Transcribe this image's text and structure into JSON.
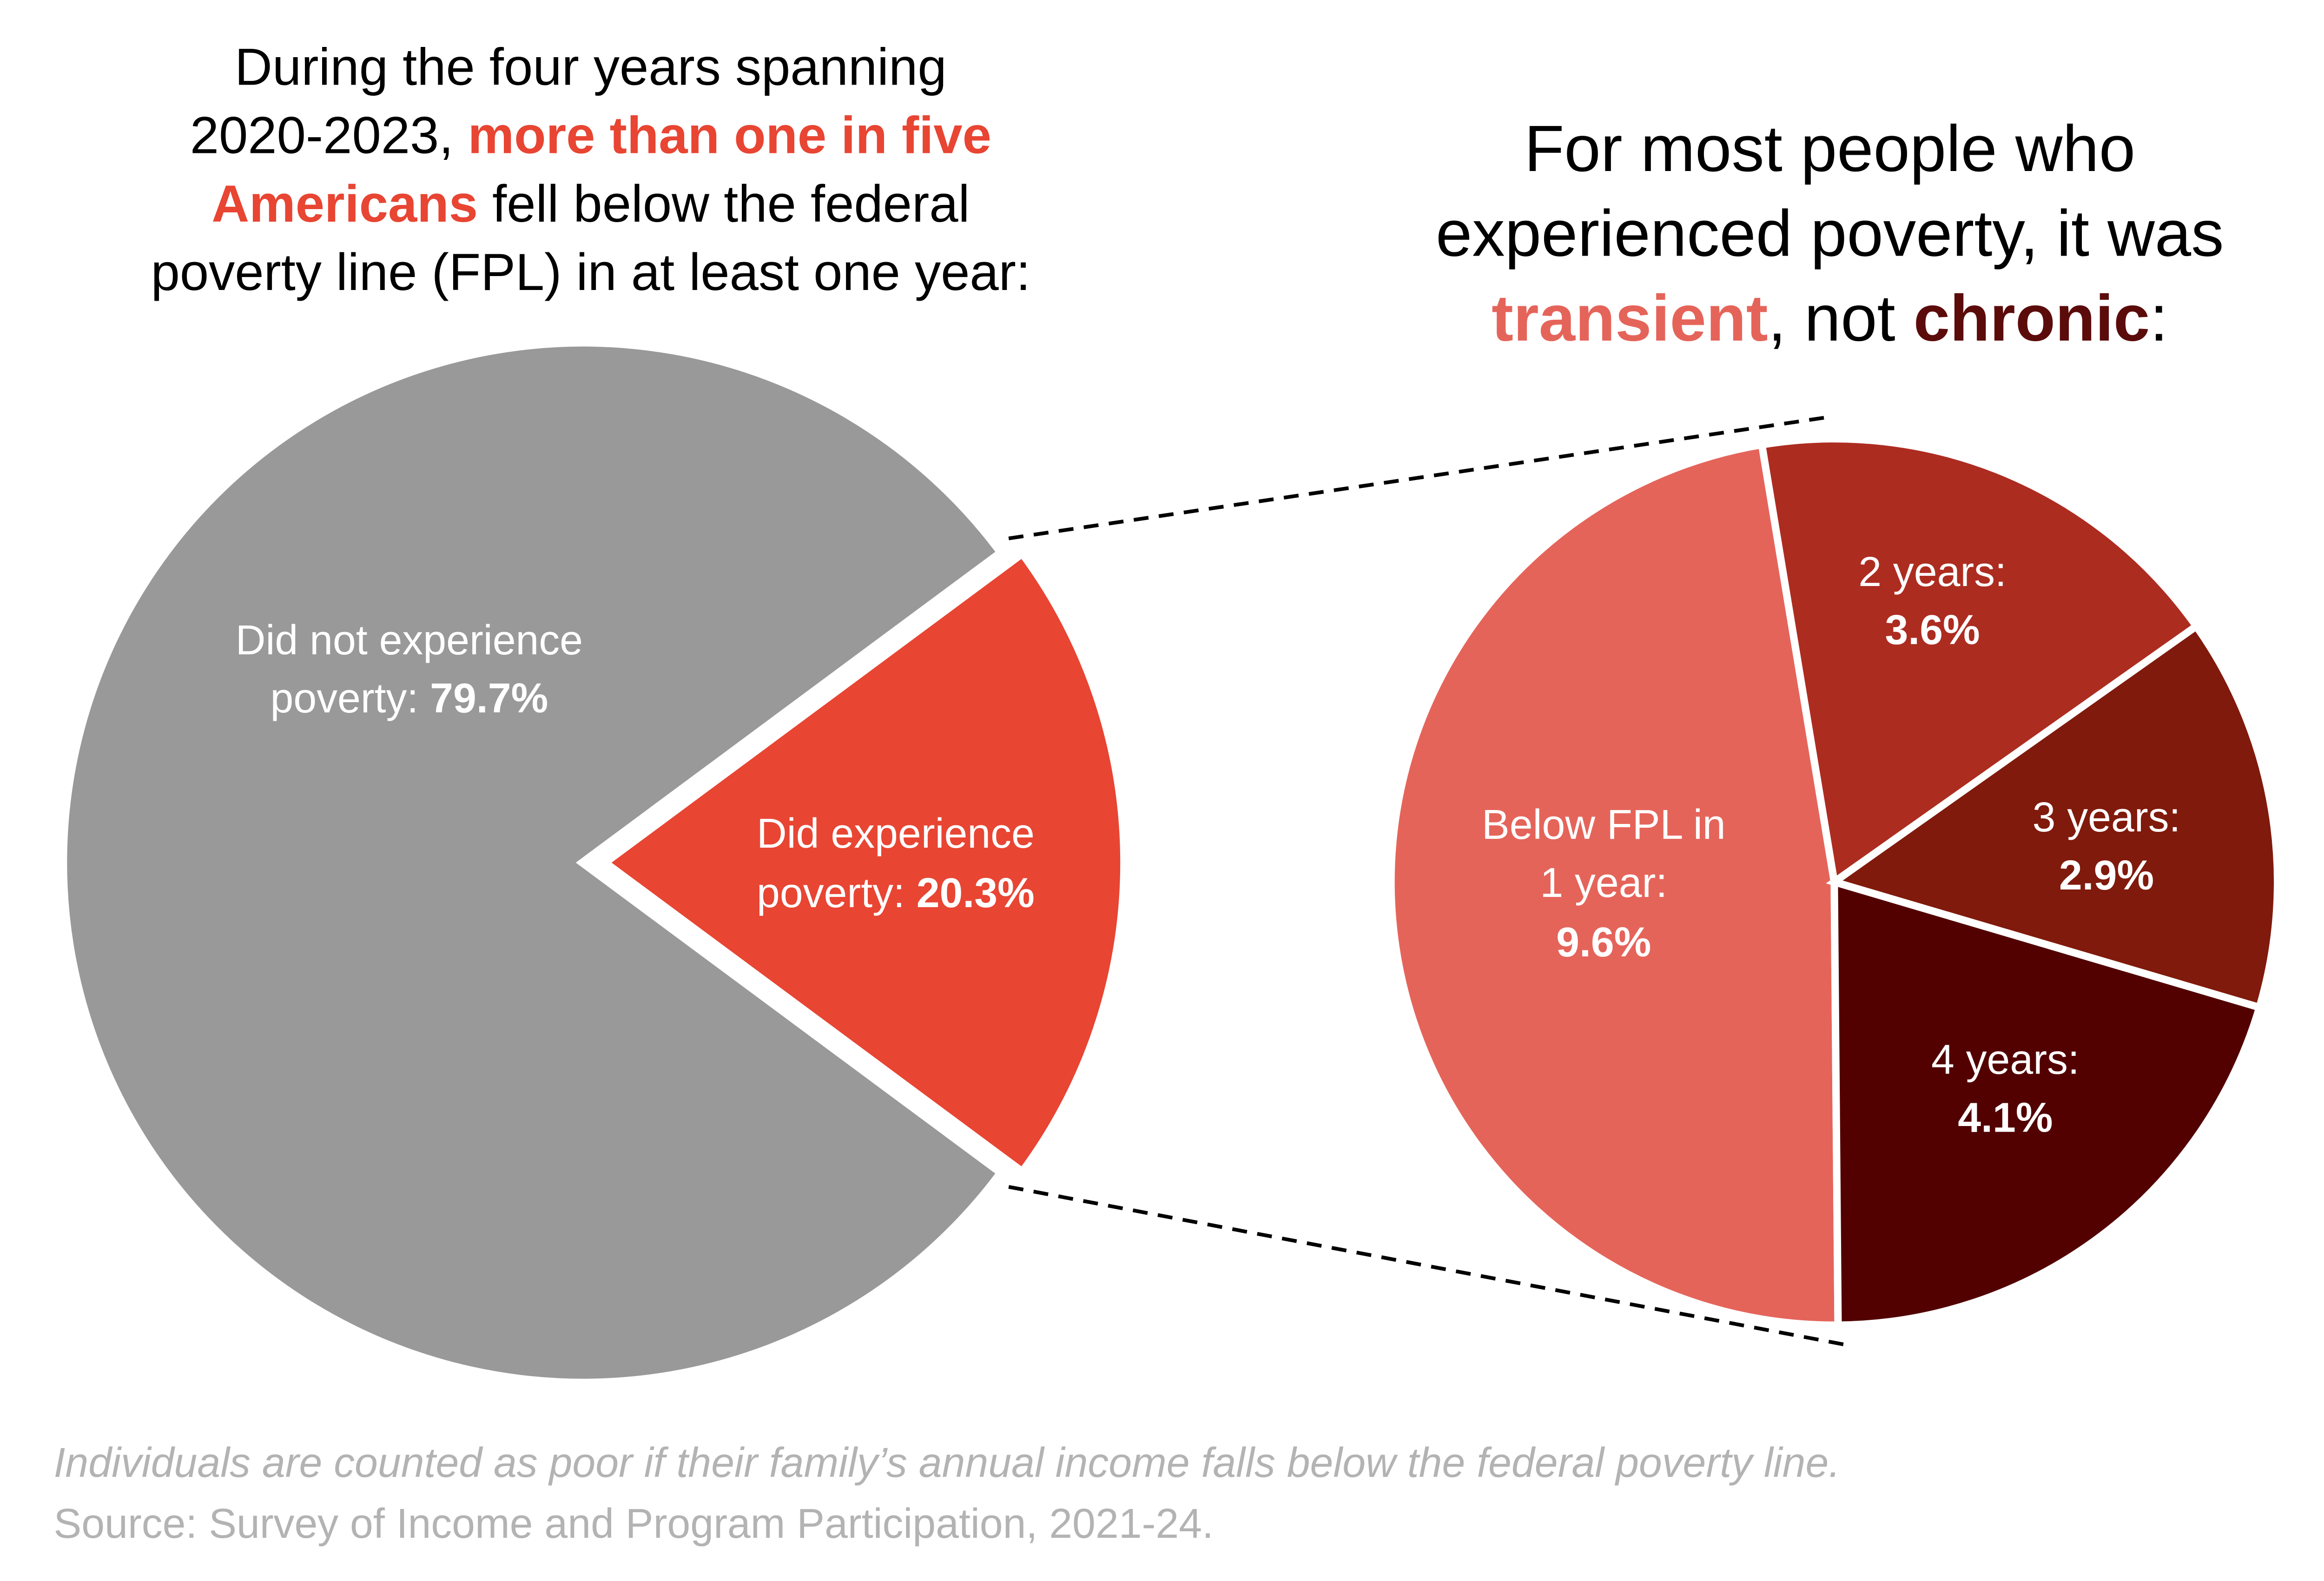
{
  "chart_data": [
    {
      "type": "pie",
      "title_lines": [
        [
          "During the four years spanning"
        ],
        [
          "2020-2023, ",
          "more than one in five"
        ],
        [
          "Americans",
          " fell below the federal"
        ],
        [
          "poverty line (FPL) in at least one year:"
        ]
      ],
      "slices": [
        {
          "label": "Did not experience poverty",
          "label_lines": [
            "Did not experience",
            "poverty: "
          ],
          "value_text": "79.7%",
          "value": 79.7,
          "color": "#999999"
        },
        {
          "label": "Did experience poverty",
          "label_lines": [
            "Did experience",
            "poverty: "
          ],
          "value_text": "20.3%",
          "value": 20.3,
          "color": "#e84533",
          "exploded": true
        }
      ]
    },
    {
      "type": "pie",
      "title_lines": [
        [
          "For most people who"
        ],
        [
          "experienced poverty, it was"
        ],
        [
          "transient",
          ", not ",
          "chronic",
          ":"
        ]
      ],
      "slices": [
        {
          "label": "Below FPL in 1 year",
          "label_lines": [
            "Below FPL in",
            "1 year:"
          ],
          "value_text": "9.6%",
          "value": 9.6,
          "color": "#e5645a"
        },
        {
          "label": "2 years",
          "label_lines": [
            "2 years:"
          ],
          "value_text": "3.6%",
          "value": 3.6,
          "color": "#ad2c20"
        },
        {
          "label": "3 years",
          "label_lines": [
            "3 years:"
          ],
          "value_text": "2.9%",
          "value": 2.9,
          "color": "#801a0c"
        },
        {
          "label": "4 years",
          "label_lines": [
            "4 years:"
          ],
          "value_text": "4.1%",
          "value": 4.1,
          "color": "#520000"
        }
      ]
    }
  ],
  "colors": {
    "highlight": "#e84533",
    "transient": "#e5645a",
    "chronic": "#5c0b0b"
  },
  "footnote": {
    "note": "Individuals are counted as poor if their family’s annual income falls below the federal poverty line.",
    "source": "Source: Survey of Income and Program Participation, 2021-24."
  }
}
